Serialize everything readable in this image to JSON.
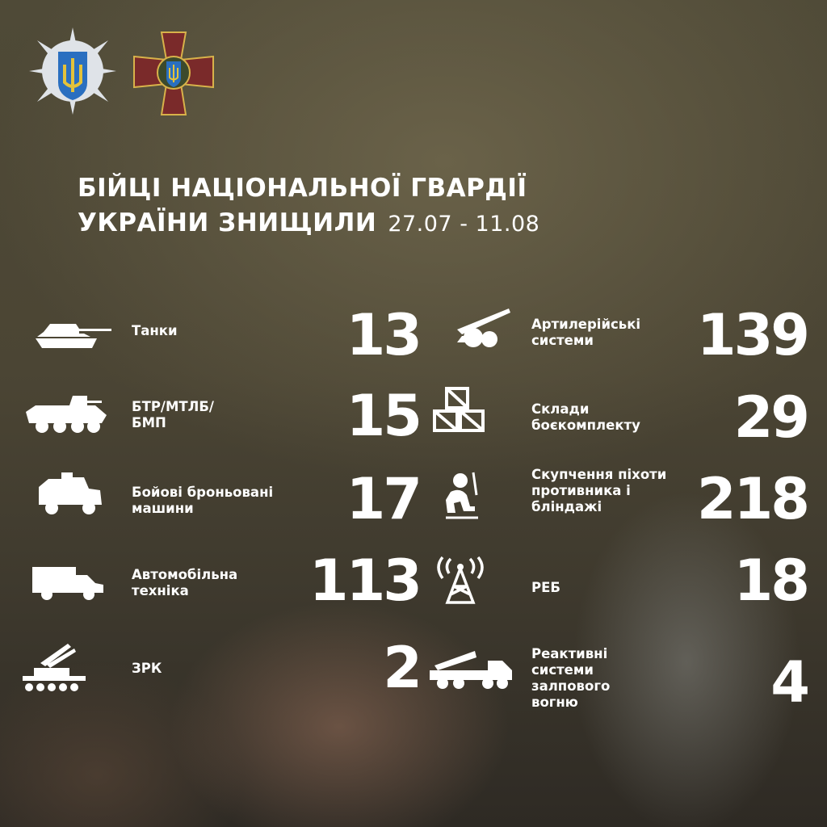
{
  "logos": {
    "left": "mvs-star-emblem",
    "right": "national-guard-cross-emblem"
  },
  "title": {
    "line1": "БІЙЦІ НАЦІОНАЛЬНОЇ ГВАРДІЇ",
    "line2": "УКРАЇНИ ЗНИЩИЛИ",
    "date": "27.07 - 11.08"
  },
  "left": [
    {
      "icon": "tank-icon",
      "label": "Танки",
      "value": "13"
    },
    {
      "icon": "apc-icon",
      "label": "БТР/МТЛБ/ БМП",
      "value": "15"
    },
    {
      "icon": "armored-vehicle-icon",
      "label": "Бойові броньовані машини",
      "value": "17"
    },
    {
      "icon": "truck-icon",
      "label": "Автомобільна техніка",
      "value": "113"
    },
    {
      "icon": "air-defense-icon",
      "label": "ЗРК",
      "value": "2"
    }
  ],
  "right": [
    {
      "icon": "artillery-icon",
      "label": "Артилерійські системи",
      "value": "139"
    },
    {
      "icon": "ammo-crates-icon",
      "label": "Склади боєкомплекту",
      "value": "29"
    },
    {
      "icon": "infantry-icon",
      "label": "Скупчення піхоти противника і бліндажі",
      "value": "218"
    },
    {
      "icon": "radio-tower-icon",
      "label": "РЕБ",
      "value": "18"
    },
    {
      "icon": "mlrs-icon",
      "label": "Реактивні системи залпового вогню",
      "value": "4"
    }
  ],
  "colors": {
    "text": "#ffffff",
    "cross": "#7a2a2a",
    "cross_border": "#d8b24a",
    "shield": "#2a6fc0",
    "trident": "#e3c23a"
  }
}
